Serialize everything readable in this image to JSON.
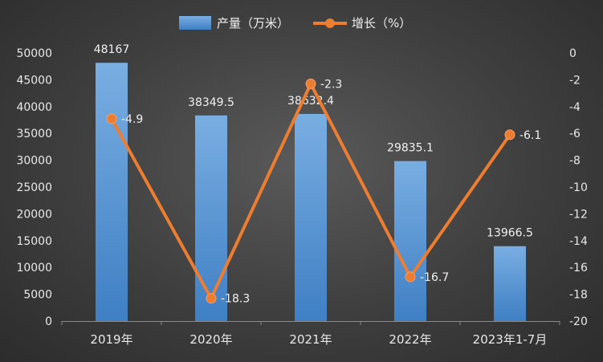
{
  "chart_data": {
    "type": "bar+line",
    "categories": [
      "2019年",
      "2020年",
      "2021年",
      "2022年",
      "2023年1-7月"
    ],
    "series": [
      {
        "name": "产量（万米）",
        "type": "bar",
        "axis": "left",
        "values": [
          48167,
          38349.5,
          38632.4,
          29835.1,
          13966.5
        ],
        "labels": [
          "48167",
          "38349.5",
          "38632.4",
          "29835.1",
          "13966.5"
        ]
      },
      {
        "name": "增长（%）",
        "type": "line",
        "axis": "right",
        "values": [
          -4.9,
          -18.3,
          -2.3,
          -16.7,
          -6.1
        ],
        "labels": [
          "-4.9",
          "-18.3",
          "-2.3",
          "-16.7",
          "-6.1"
        ]
      }
    ],
    "ylim_left": [
      0,
      50000
    ],
    "yticks_left": [
      "0",
      "5000",
      "10000",
      "15000",
      "20000",
      "25000",
      "30000",
      "35000",
      "40000",
      "45000",
      "50000"
    ],
    "ylim_right": [
      -20,
      0
    ],
    "yticks_right": [
      "-20",
      "-18",
      "-16",
      "-14",
      "-12",
      "-10",
      "-8",
      "-6",
      "-4",
      "-2",
      "0"
    ],
    "legend_position": "top-center",
    "grid": false,
    "colors": {
      "bar": "#5b9bd5",
      "line": "#ed7d31",
      "text": "#e8e8e8",
      "axis": "#8a8a8a"
    }
  }
}
